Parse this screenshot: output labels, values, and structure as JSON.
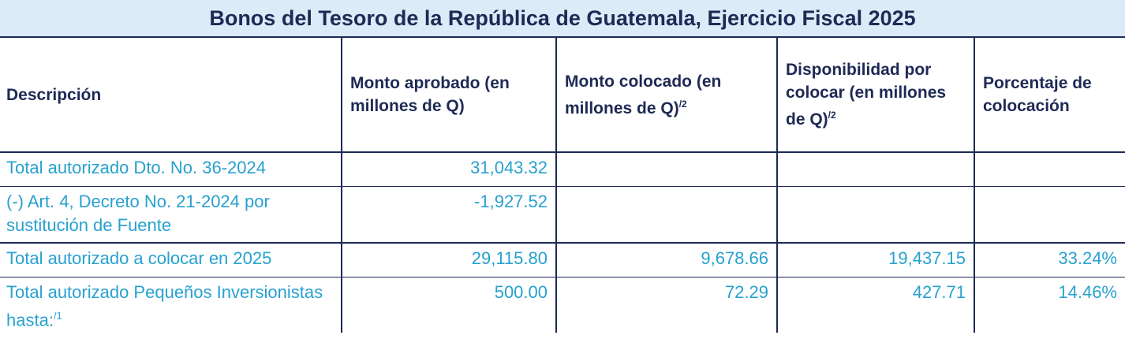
{
  "title": "Bonos del Tesoro de la República de Guatemala, Ejercicio Fiscal 2025",
  "headers": {
    "descripcion": "Descripción",
    "monto_aprobado": "Monto aprobado (en millones de Q)",
    "monto_colocado": "Monto colocado (en millones de Q)",
    "monto_colocado_sup": "/2",
    "disponibilidad": "Disponibilidad por colocar (en millones de Q)",
    "disponibilidad_sup": "/2",
    "porcentaje": "Porcentaje de colocación"
  },
  "rows": [
    {
      "descripcion": "Total autorizado Dto. No. 36-2024",
      "sup": "",
      "monto_aprobado": "31,043.32",
      "monto_colocado": "",
      "disponibilidad": "",
      "porcentaje": ""
    },
    {
      "descripcion": "(-) Art. 4, Decreto No. 21-2024 por sustitución de Fuente",
      "sup": "",
      "monto_aprobado": "-1,927.52",
      "monto_colocado": "",
      "disponibilidad": "",
      "porcentaje": ""
    },
    {
      "descripcion": "Total autorizado a colocar en 2025",
      "sup": "",
      "monto_aprobado": "29,115.80",
      "monto_colocado": "9,678.66",
      "disponibilidad": "19,437.15",
      "porcentaje": "33.24%"
    },
    {
      "descripcion": "Total autorizado Pequeños Inversionistas hasta:",
      "sup": "/1",
      "monto_aprobado": "500.00",
      "monto_colocado": "72.29",
      "disponibilidad": "427.71",
      "porcentaje": "14.46%"
    }
  ]
}
